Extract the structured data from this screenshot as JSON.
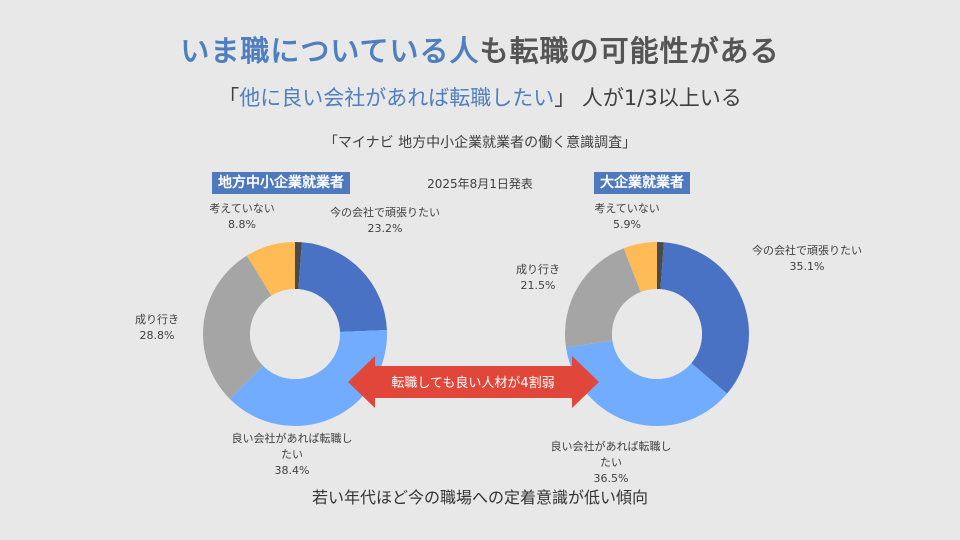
{
  "header": {
    "title_highlight": "いま職についている人",
    "title_rest": "も転職の可能性がある",
    "subtitle_open": "「",
    "subtitle_highlight": "他に良い会社があれば転職したい",
    "subtitle_close": "」",
    "subtitle_rest": " 人が1/3以上いる",
    "source": "「マイナビ 地方中小企業就業者の働く意識調査」",
    "date": "2025年8月1日発表"
  },
  "arrow_label": "転職しても良い人材が4割弱",
  "footer": "若い年代ほど今の職場への定着意識が低い傾向",
  "colors": {
    "accent": "#4f7fbf",
    "badge": "#4f79bd",
    "arrow": "#e0473a",
    "background": "#e8e8e8"
  },
  "chart_data": [
    {
      "type": "pie",
      "title": "地方中小企業就業者",
      "donut": true,
      "categories": [
        "今の会社で頑張りたい",
        "良い会社があれば転職したい",
        "成り行き",
        "考えていない"
      ],
      "values": [
        23.2,
        38.4,
        28.8,
        8.8
      ],
      "value_labels": [
        "23.2%",
        "38.4%",
        "28.8%",
        "8.8%"
      ],
      "colors": [
        "#4a72c4",
        "#72acff",
        "#a5a5a5",
        "#ffbb55"
      ]
    },
    {
      "type": "pie",
      "title": "大企業就業者",
      "donut": true,
      "categories": [
        "今の会社で頑張りたい",
        "良い会社があれば転職したい",
        "成り行き",
        "考えていない"
      ],
      "values": [
        35.1,
        36.5,
        21.5,
        5.9
      ],
      "value_labels": [
        "35.1%",
        "36.5%",
        "21.5%",
        "5.9%"
      ],
      "colors": [
        "#4a72c4",
        "#72acff",
        "#a5a5a5",
        "#ffbb55"
      ]
    }
  ]
}
